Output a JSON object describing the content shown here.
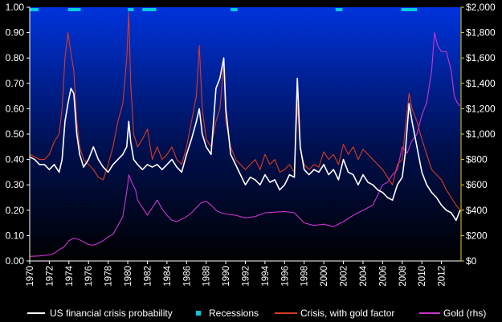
{
  "chart_data": {
    "type": "line",
    "title": "",
    "xlabel": "",
    "ylabel": "",
    "xlim": [
      1970,
      2014
    ],
    "ylim": [
      0.0,
      1.0
    ],
    "y2lim": [
      0,
      2000
    ],
    "x_ticks": [
      "1970",
      "1972",
      "1974",
      "1976",
      "1978",
      "1980",
      "1982",
      "1984",
      "1986",
      "1988",
      "1990",
      "1992",
      "1994",
      "1996",
      "1998",
      "2000",
      "2002",
      "2004",
      "2006",
      "2008",
      "2010",
      "2012"
    ],
    "y_ticks": [
      "0.00",
      "0.10",
      "0.20",
      "0.30",
      "0.40",
      "0.50",
      "0.60",
      "0.70",
      "0.80",
      "0.90",
      "1.00"
    ],
    "y2_ticks": [
      "$0",
      "$200",
      "$400",
      "$600",
      "$800",
      "$1,000",
      "$1,200",
      "$1,400",
      "$1,600",
      "$1,800",
      "$2,000"
    ],
    "legend_position": "bottom",
    "grid": false,
    "colors": {
      "crisis": "#ffffff",
      "recessions": "#00ccdd",
      "gold_factor": "#d83a20",
      "gold": "#cc33cc",
      "bg_top": "#0033dd",
      "bg_bottom": "#000000",
      "axis_right": "#e8d000"
    },
    "series": [
      {
        "name": "US financial crisis probability",
        "axis": "left",
        "x": [
          1970,
          1970.5,
          1971,
          1971.5,
          1972,
          1972.5,
          1973,
          1973.3,
          1973.6,
          1973.9,
          1974.2,
          1974.5,
          1974.8,
          1975.1,
          1975.5,
          1976,
          1976.5,
          1977,
          1977.5,
          1978,
          1978.5,
          1979,
          1979.5,
          1979.9,
          1980.1,
          1980.3,
          1980.6,
          1981,
          1981.5,
          1982,
          1982.5,
          1983,
          1983.5,
          1984,
          1984.5,
          1985,
          1985.5,
          1986,
          1986.5,
          1987,
          1987.3,
          1987.6,
          1988,
          1988.5,
          1989,
          1989.4,
          1989.8,
          1990,
          1990.5,
          1991,
          1991.5,
          1992,
          1992.5,
          1993,
          1993.5,
          1994,
          1994.5,
          1995,
          1995.5,
          1996,
          1996.5,
          1997,
          1997.3,
          1997.6,
          1998,
          1998.5,
          1999,
          1999.5,
          2000,
          2000.5,
          2001,
          2001.5,
          2002,
          2002.5,
          2003,
          2003.5,
          2004,
          2004.5,
          2005,
          2005.5,
          2006,
          2006.5,
          2007,
          2007.5,
          2008,
          2008.3,
          2008.7,
          2009,
          2009.5,
          2010,
          2010.5,
          2011,
          2011.5,
          2012,
          2012.5,
          2013,
          2013.5,
          2013.9
        ],
        "values": [
          0.41,
          0.4,
          0.38,
          0.38,
          0.36,
          0.38,
          0.35,
          0.4,
          0.55,
          0.62,
          0.68,
          0.66,
          0.5,
          0.42,
          0.37,
          0.4,
          0.45,
          0.4,
          0.37,
          0.35,
          0.38,
          0.4,
          0.42,
          0.45,
          0.55,
          0.47,
          0.4,
          0.38,
          0.36,
          0.38,
          0.37,
          0.38,
          0.36,
          0.38,
          0.4,
          0.37,
          0.35,
          0.42,
          0.48,
          0.55,
          0.6,
          0.5,
          0.45,
          0.42,
          0.68,
          0.72,
          0.8,
          0.6,
          0.42,
          0.38,
          0.34,
          0.3,
          0.33,
          0.32,
          0.3,
          0.34,
          0.31,
          0.32,
          0.28,
          0.3,
          0.34,
          0.33,
          0.72,
          0.45,
          0.36,
          0.34,
          0.36,
          0.35,
          0.38,
          0.34,
          0.36,
          0.32,
          0.4,
          0.35,
          0.34,
          0.3,
          0.34,
          0.31,
          0.3,
          0.28,
          0.27,
          0.25,
          0.24,
          0.3,
          0.33,
          0.42,
          0.62,
          0.55,
          0.45,
          0.35,
          0.3,
          0.27,
          0.25,
          0.22,
          0.2,
          0.19,
          0.16,
          0.2
        ]
      },
      {
        "name": "Crisis, with gold factor",
        "axis": "left",
        "x": [
          1970,
          1970.5,
          1971,
          1971.5,
          1972,
          1972.5,
          1973,
          1973.3,
          1973.6,
          1973.9,
          1974.2,
          1974.5,
          1974.8,
          1975.1,
          1975.5,
          1976,
          1976.5,
          1977,
          1977.5,
          1978,
          1978.5,
          1979,
          1979.5,
          1979.9,
          1980.1,
          1980.3,
          1980.6,
          1981,
          1981.5,
          1982,
          1982.5,
          1983,
          1983.5,
          1984,
          1984.5,
          1985,
          1985.5,
          1986,
          1986.5,
          1987,
          1987.3,
          1987.6,
          1988,
          1988.5,
          1989,
          1989.4,
          1989.8,
          1990,
          1990.5,
          1991,
          1991.5,
          1992,
          1992.5,
          1993,
          1993.5,
          1994,
          1994.5,
          1995,
          1995.5,
          1996,
          1996.5,
          1997,
          1997.3,
          1997.6,
          1998,
          1998.5,
          1999,
          1999.5,
          2000,
          2000.5,
          2001,
          2001.5,
          2002,
          2002.5,
          2003,
          2003.5,
          2004,
          2004.5,
          2005,
          2005.5,
          2006,
          2006.5,
          2007,
          2007.5,
          2008,
          2008.3,
          2008.7,
          2009,
          2009.5,
          2010,
          2010.5,
          2011,
          2011.5,
          2012,
          2012.5,
          2013,
          2013.5,
          2013.9
        ],
        "values": [
          0.42,
          0.41,
          0.4,
          0.4,
          0.42,
          0.47,
          0.5,
          0.6,
          0.8,
          0.9,
          0.82,
          0.75,
          0.55,
          0.45,
          0.4,
          0.38,
          0.36,
          0.33,
          0.32,
          0.38,
          0.45,
          0.55,
          0.62,
          0.8,
          0.98,
          0.7,
          0.5,
          0.45,
          0.48,
          0.52,
          0.4,
          0.45,
          0.4,
          0.42,
          0.45,
          0.4,
          0.38,
          0.45,
          0.55,
          0.65,
          0.85,
          0.6,
          0.48,
          0.45,
          0.55,
          0.6,
          0.78,
          0.55,
          0.45,
          0.4,
          0.38,
          0.36,
          0.38,
          0.4,
          0.36,
          0.42,
          0.38,
          0.4,
          0.35,
          0.36,
          0.38,
          0.35,
          0.62,
          0.44,
          0.38,
          0.36,
          0.38,
          0.37,
          0.43,
          0.4,
          0.42,
          0.38,
          0.46,
          0.42,
          0.45,
          0.4,
          0.44,
          0.42,
          0.4,
          0.38,
          0.36,
          0.33,
          0.3,
          0.38,
          0.4,
          0.52,
          0.66,
          0.6,
          0.55,
          0.48,
          0.42,
          0.36,
          0.34,
          0.32,
          0.28,
          0.25,
          0.22,
          0.2
        ]
      },
      {
        "name": "Gold (rhs)",
        "axis": "right",
        "x": [
          1970,
          1971,
          1972,
          1972.5,
          1973,
          1973.5,
          1974,
          1974.5,
          1975,
          1975.5,
          1976,
          1976.5,
          1977,
          1977.5,
          1978,
          1978.5,
          1979,
          1979.5,
          1980,
          1980.1,
          1980.4,
          1980.8,
          1981,
          1981.5,
          1982,
          1982.5,
          1983,
          1983.5,
          1984,
          1984.5,
          1985,
          1985.5,
          1986,
          1986.5,
          1987,
          1987.5,
          1988,
          1988.5,
          1989,
          1989.5,
          1990,
          1991,
          1992,
          1993,
          1994,
          1995,
          1996,
          1997,
          1998,
          1999,
          2000,
          2001,
          2002,
          2003,
          2004,
          2005,
          2006,
          2006.5,
          2007,
          2007.5,
          2008,
          2008.5,
          2009,
          2009.5,
          2010,
          2010.5,
          2011,
          2011.3,
          2011.6,
          2012,
          2012.5,
          2013,
          2013.3,
          2013.6,
          2013.9
        ],
        "values": [
          36,
          40,
          48,
          60,
          90,
          110,
          160,
          180,
          170,
          150,
          130,
          125,
          140,
          160,
          190,
          210,
          280,
          350,
          600,
          680,
          620,
          560,
          480,
          420,
          360,
          420,
          480,
          410,
          360,
          320,
          310,
          330,
          350,
          380,
          420,
          460,
          470,
          440,
          400,
          380,
          370,
          360,
          340,
          350,
          380,
          385,
          390,
          380,
          300,
          280,
          290,
          270,
          310,
          360,
          400,
          440,
          600,
          620,
          680,
          720,
          900,
          850,
          950,
          1000,
          1150,
          1250,
          1500,
          1800,
          1700,
          1650,
          1650,
          1500,
          1300,
          1250,
          1220
        ]
      }
    ],
    "recessions": [
      [
        1969.9,
        1970.9
      ],
      [
        1973.9,
        1975.2
      ],
      [
        1980.0,
        1980.6
      ],
      [
        1981.5,
        1982.9
      ],
      [
        1990.5,
        1991.2
      ],
      [
        2001.2,
        2001.9
      ],
      [
        2007.9,
        2009.5
      ]
    ]
  },
  "legend": {
    "crisis": "US financial crisis probability",
    "recessions": "Recessions",
    "gold_factor": "Crisis, with gold factor",
    "gold": "Gold (rhs)"
  }
}
